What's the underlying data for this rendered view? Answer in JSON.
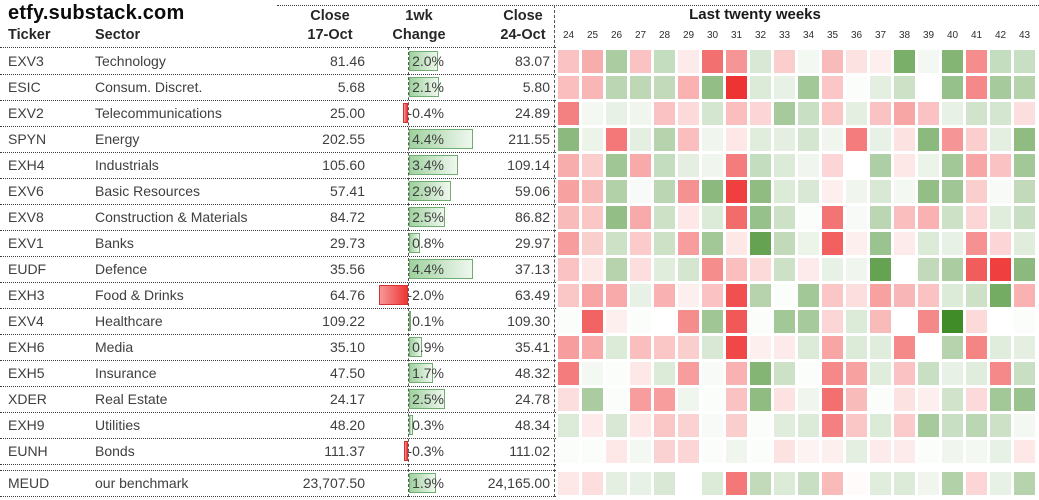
{
  "title": "etfy.substack.com",
  "header": {
    "ticker": "Ticker",
    "sector": "Sector",
    "close_prev_line1": "Close",
    "close_prev_line2": "17-Oct",
    "change_line1": "1wk",
    "change_line2": "Change",
    "close_last_line1": "Close",
    "close_last_line2": "24-Oct",
    "heatmap_title": "Last twenty weeks"
  },
  "weeks": [
    "24",
    "25",
    "26",
    "27",
    "28",
    "29",
    "30",
    "31",
    "32",
    "33",
    "34",
    "35",
    "36",
    "37",
    "38",
    "39",
    "40",
    "41",
    "42",
    "43"
  ],
  "rows": [
    {
      "ticker": "EXV3",
      "sector": "Technology",
      "close_prev": "81.46",
      "change_pct": 2.0,
      "change_label": "2.0%",
      "close_last": "83.07"
    },
    {
      "ticker": "ESIC",
      "sector": "Consum. Discret.",
      "close_prev": "5.68",
      "change_pct": 2.1,
      "change_label": "2.1%",
      "close_last": "5.80"
    },
    {
      "ticker": "EXV2",
      "sector": "Telecommunications",
      "close_prev": "25.00",
      "change_pct": -0.4,
      "change_label": "-0.4%",
      "close_last": "24.89"
    },
    {
      "ticker": "SPYN",
      "sector": "Energy",
      "close_prev": "202.55",
      "change_pct": 4.4,
      "change_label": "4.4%",
      "close_last": "211.55"
    },
    {
      "ticker": "EXH4",
      "sector": "Industrials",
      "close_prev": "105.60",
      "change_pct": 3.4,
      "change_label": "3.4%",
      "close_last": "109.14"
    },
    {
      "ticker": "EXV6",
      "sector": "Basic Resources",
      "close_prev": "57.41",
      "change_pct": 2.9,
      "change_label": "2.9%",
      "close_last": "59.06"
    },
    {
      "ticker": "EXV8",
      "sector": "Construction & Materials",
      "close_prev": "84.72",
      "change_pct": 2.5,
      "change_label": "2.5%",
      "close_last": "86.82"
    },
    {
      "ticker": "EXV1",
      "sector": "Banks",
      "close_prev": "29.73",
      "change_pct": 0.8,
      "change_label": "0.8%",
      "close_last": "29.97"
    },
    {
      "ticker": "EUDF",
      "sector": "Defence",
      "close_prev": "35.56",
      "change_pct": 4.4,
      "change_label": "4.4%",
      "close_last": "37.13"
    },
    {
      "ticker": "EXH3",
      "sector": "Food & Drinks",
      "close_prev": "64.76",
      "change_pct": -2.0,
      "change_label": "-2.0%",
      "close_last": "63.49"
    },
    {
      "ticker": "EXV4",
      "sector": "Healthcare",
      "close_prev": "109.22",
      "change_pct": 0.1,
      "change_label": "0.1%",
      "close_last": "109.30"
    },
    {
      "ticker": "EXH6",
      "sector": "Media",
      "close_prev": "35.10",
      "change_pct": 0.9,
      "change_label": "0.9%",
      "close_last": "35.41"
    },
    {
      "ticker": "EXH5",
      "sector": "Insurance",
      "close_prev": "47.50",
      "change_pct": 1.7,
      "change_label": "1.7%",
      "close_last": "48.32"
    },
    {
      "ticker": "XDER",
      "sector": "Real Estate",
      "close_prev": "24.17",
      "change_pct": 2.5,
      "change_label": "2.5%",
      "close_last": "24.78"
    },
    {
      "ticker": "EXH9",
      "sector": "Utilities",
      "close_prev": "48.20",
      "change_pct": 0.3,
      "change_label": "0.3%",
      "close_last": "48.34"
    },
    {
      "ticker": "EUNH",
      "sector": "Bonds",
      "close_prev": "111.37",
      "change_pct": -0.3,
      "change_label": "-0.3%",
      "close_last": "111.02"
    },
    {
      "ticker": "MEUD",
      "sector": "our benchmark",
      "close_prev": "23,707.50",
      "change_pct": 1.9,
      "change_label": "1.9%",
      "close_last": "24,165.00",
      "benchmark": true
    }
  ],
  "colors": {
    "positive_extreme": "#3f8c28",
    "negative_extreme": "#ee3333",
    "bar_positive_border": "#71ad71",
    "bar_negative_border": "#d23232"
  },
  "chart_data": {
    "type": "heatmap",
    "title": "Last twenty weeks",
    "x_labels": [
      "24",
      "25",
      "26",
      "27",
      "28",
      "29",
      "30",
      "31",
      "32",
      "33",
      "34",
      "35",
      "36",
      "37",
      "38",
      "39",
      "40",
      "41",
      "42",
      "43"
    ],
    "row_labels": [
      "EXV3",
      "ESIC",
      "EXV2",
      "SPYN",
      "EXH4",
      "EXV6",
      "EXV8",
      "EXV1",
      "EUDF",
      "EXH3",
      "EXV4",
      "EXH6",
      "EXH5",
      "XDER",
      "EXH9",
      "EUNH",
      "MEUD"
    ],
    "scale": {
      "min": -5,
      "max": 5,
      "note": "approximate weekly % change intensity estimated from cell color; negative=red, positive=green"
    },
    "legend_position": "none",
    "grid": false,
    "values": [
      [
        -1.5,
        -2.0,
        2.2,
        -1.5,
        1.5,
        -0.5,
        -3.5,
        -2.6,
        1.0,
        -1.2,
        0.3,
        -1.7,
        -0.7,
        -0.4,
        3.5,
        0.3,
        3.2,
        -2.8,
        1.5,
        1.4
      ],
      [
        -1.6,
        -1.8,
        1.8,
        1.7,
        1.6,
        -1.9,
        2.8,
        -5.0,
        0.9,
        0.6,
        2.4,
        -1.4,
        0.1,
        0.7,
        1.3,
        0.0,
        2.7,
        -2.9,
        2.3,
        1.9
      ],
      [
        -3.1,
        0.3,
        0.6,
        0.4,
        -1.5,
        -0.9,
        1.1,
        -1.6,
        -1.0,
        2.3,
        1.4,
        -1.4,
        0.7,
        -1.5,
        -2.2,
        -1.5,
        0.6,
        1.2,
        1.1,
        -0.8
      ],
      [
        3.0,
        0.5,
        -3.3,
        0.7,
        1.9,
        -1.6,
        0.4,
        -0.6,
        0.8,
        0.7,
        1.1,
        0.4,
        -3.2,
        0.6,
        -0.7,
        3.0,
        -2.6,
        -1.2,
        0.7,
        2.9
      ],
      [
        -2.0,
        -1.2,
        2.5,
        -2.1,
        1.5,
        0.7,
        0.4,
        -3.2,
        1.5,
        0.9,
        0.4,
        -1.0,
        0.0,
        2.1,
        -0.6,
        0.5,
        2.4,
        -2.2,
        -1.5,
        2.4
      ],
      [
        -2.3,
        -1.7,
        2.0,
        0.2,
        1.8,
        -2.7,
        3.0,
        -4.7,
        2.9,
        0.9,
        1.0,
        -0.4,
        0.4,
        1.0,
        0.3,
        2.8,
        2.5,
        -1.2,
        0.2,
        1.6
      ],
      [
        -1.7,
        -1.4,
        2.8,
        -2.1,
        1.3,
        -0.6,
        0.9,
        -3.6,
        2.7,
        1.3,
        0.1,
        -3.4,
        0.2,
        1.8,
        -1.6,
        -1.9,
        1.3,
        -1.0,
        0.8,
        1.4
      ],
      [
        -2.4,
        -1.2,
        1.3,
        -1.3,
        1.3,
        -2.4,
        2.4,
        -0.6,
        4.0,
        1.6,
        0.5,
        -3.9,
        -0.4,
        2.6,
        -0.5,
        0.9,
        0.6,
        -2.7,
        -1.0,
        0.8
      ],
      [
        -1.5,
        -0.6,
        1.9,
        -0.8,
        0.8,
        1.1,
        -2.8,
        -1.6,
        -0.9,
        1.3,
        -0.5,
        0.6,
        0.4,
        4.0,
        0.0,
        1.6,
        2.2,
        -4.0,
        -4.7,
        3.0
      ],
      [
        -1.4,
        -2.2,
        -2.1,
        0.6,
        -1.9,
        -0.4,
        -1.5,
        -4.3,
        1.9,
        0.1,
        2.4,
        -1.4,
        -0.8,
        -2.3,
        -1.8,
        -1.5,
        0.9,
        1.3,
        3.6,
        -1.9
      ],
      [
        0.1,
        -3.8,
        -0.4,
        0.1,
        0.0,
        -2.8,
        2.5,
        -4.1,
        0.1,
        2.4,
        2.3,
        -1.0,
        0.9,
        -1.7,
        0.0,
        -2.9,
        5.0,
        -0.9,
        0.0,
        0.1
      ],
      [
        -2.4,
        -2.1,
        0.9,
        -1.6,
        -1.4,
        -1.2,
        1.0,
        -4.5,
        -0.4,
        -0.5,
        0.9,
        -2.2,
        0.9,
        0.8,
        -2.9,
        0.0,
        1.9,
        -3.0,
        0.8,
        0.7
      ],
      [
        -3.2,
        0.3,
        0.1,
        -0.6,
        0.9,
        -2.4,
        0.2,
        -1.9,
        3.2,
        1.3,
        0.1,
        -2.9,
        -2.3,
        0.8,
        -1.5,
        1.4,
        0.6,
        0.8,
        -2.9,
        1.4
      ],
      [
        -0.8,
        2.2,
        0.1,
        -2.4,
        -2.4,
        0.4,
        0.1,
        -1.5,
        2.9,
        -0.7,
        0.4,
        -3.5,
        -1.7,
        0.1,
        -0.7,
        -0.4,
        1.2,
        -0.9,
        2.4,
        2.6
      ],
      [
        0.9,
        -0.5,
        1.0,
        -0.6,
        -1.4,
        -1.1,
        0.2,
        -1.2,
        0.1,
        0.8,
        0.9,
        -3.1,
        -1.4,
        0.9,
        -1.3,
        2.3,
        1.4,
        1.8,
        1.3,
        0.3
      ],
      [
        0.1,
        0.1,
        -0.6,
        0.3,
        -1.1,
        -1.0,
        0.1,
        0.4,
        0.1,
        -0.7,
        -0.3,
        -0.4,
        0.7,
        -0.5,
        -0.5,
        0.1,
        0.4,
        0.3,
        0.6,
        -0.6
      ],
      [
        -0.6,
        -0.8,
        0.7,
        0.6,
        1.0,
        0.0,
        0.9,
        -3.3,
        1.6,
        0.9,
        1.4,
        -1.7,
        -0.1,
        0.8,
        0.9,
        0.4,
        2.0,
        -1.0,
        0.6,
        1.9
      ]
    ]
  }
}
